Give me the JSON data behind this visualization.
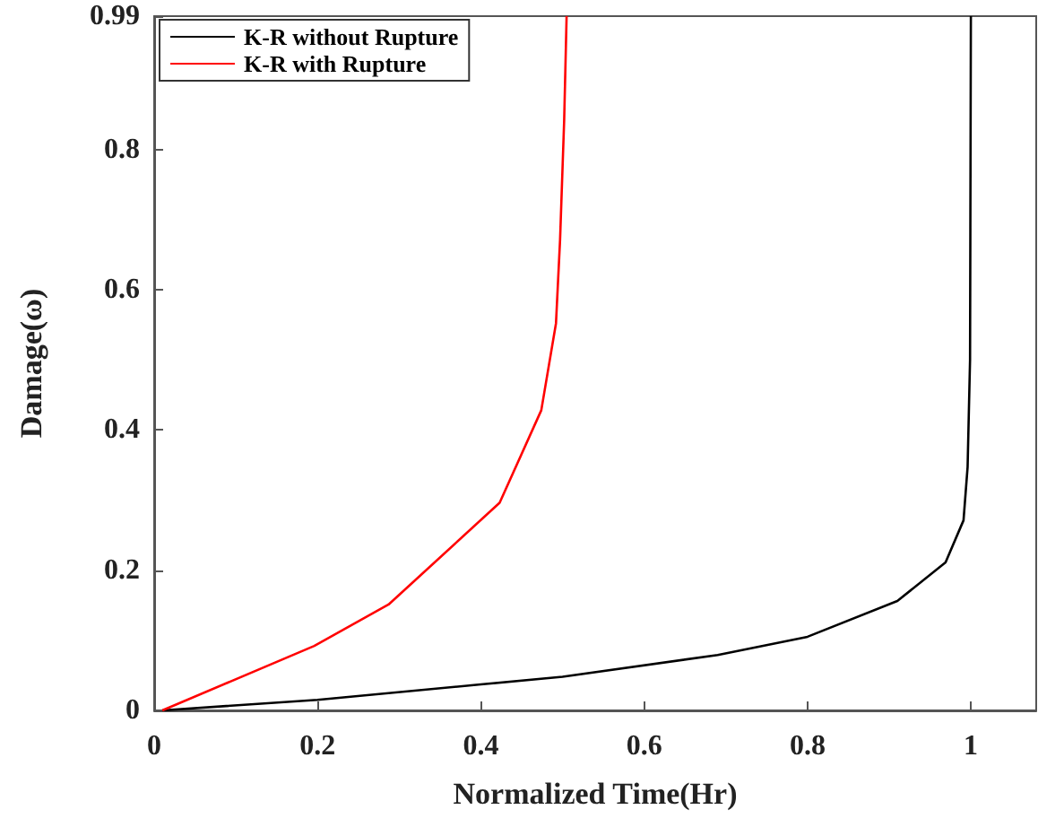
{
  "chart_data": {
    "type": "line",
    "xlabel": "Normalized Time(Hr)",
    "ylabel": "Damage(ω)",
    "xlim": [
      0,
      1.08
    ],
    "xticks": [
      0,
      0.2,
      0.4,
      0.6,
      0.8,
      1
    ],
    "ylim": [
      0,
      0.99
    ],
    "yticks": [
      0,
      0.2,
      0.4,
      0.6,
      0.8,
      0.99
    ],
    "grid": false,
    "legend": "top left",
    "marker": "none",
    "line_style": "solid",
    "series": [
      {
        "name": "K-R without Rupture",
        "color": "#000000",
        "x": [
          0.01,
          0.2,
          0.4,
          0.5,
          0.69,
          0.8,
          0.91,
          0.969,
          0.991,
          0.996,
          0.999,
          1.0
        ],
        "values": [
          0,
          0.015,
          0.037,
          0.048,
          0.079,
          0.105,
          0.156,
          0.211,
          0.271,
          0.347,
          0.5,
          0.99
        ]
      },
      {
        "name": "K-R with Rupture",
        "color": "#ff0000",
        "x": [
          0.01,
          0.196,
          0.287,
          0.423,
          0.474,
          0.492,
          0.497,
          0.502,
          0.505
        ],
        "values": [
          0,
          0.092,
          0.151,
          0.296,
          0.428,
          0.552,
          0.671,
          0.841,
          0.99
        ]
      }
    ]
  }
}
